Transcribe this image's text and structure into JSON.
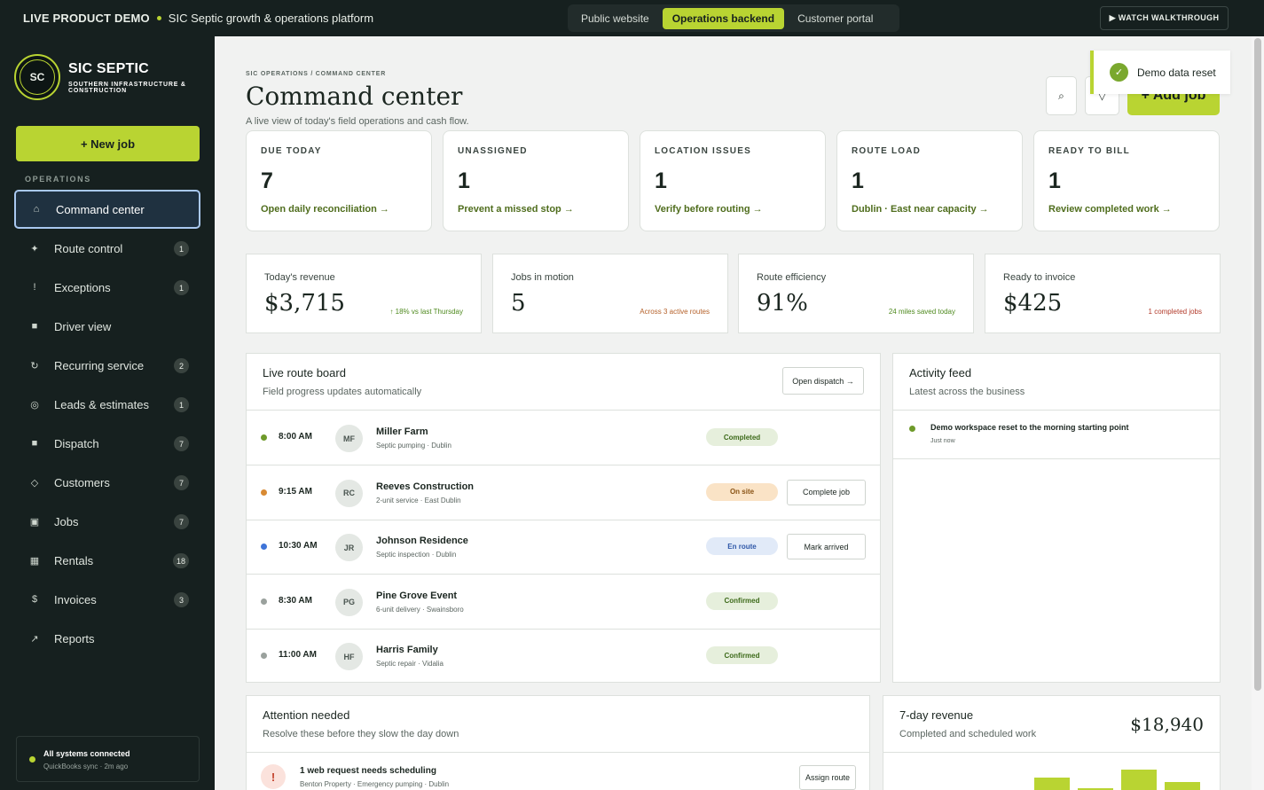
{
  "topbar": {
    "demo_label": "LIVE PRODUCT DEMO",
    "tagline": "SIC Septic growth & operations platform",
    "views": [
      "Public website",
      "Operations backend",
      "Customer portal"
    ],
    "active_view": "Operations backend",
    "walkthrough": "▶ WATCH WALKTHROUGH"
  },
  "sidebar": {
    "logo_mark": "SC",
    "brand_name": "SIC SEPTIC",
    "brand_sub": "SOUTHERN INFRASTRUCTURE & CONSTRUCTION",
    "new_job": "+ New job",
    "section": "OPERATIONS",
    "items": [
      {
        "label": "Command center",
        "icon": "⌂",
        "badge": "",
        "icon_name": "home-icon"
      },
      {
        "label": "Route control",
        "icon": "✦",
        "badge": "1",
        "icon_name": "route-icon"
      },
      {
        "label": "Exceptions",
        "icon": "!",
        "badge": "1",
        "icon_name": "alert-icon"
      },
      {
        "label": "Driver view",
        "icon": "■",
        "badge": "",
        "icon_name": "driver-icon"
      },
      {
        "label": "Recurring service",
        "icon": "↻",
        "badge": "2",
        "icon_name": "recurring-icon"
      },
      {
        "label": "Leads & estimates",
        "icon": "◎",
        "badge": "1",
        "icon_name": "leads-icon"
      },
      {
        "label": "Dispatch",
        "icon": "■",
        "badge": "7",
        "icon_name": "dispatch-icon"
      },
      {
        "label": "Customers",
        "icon": "◇",
        "badge": "7",
        "icon_name": "customers-icon"
      },
      {
        "label": "Jobs",
        "icon": "▣",
        "badge": "7",
        "icon_name": "jobs-icon"
      },
      {
        "label": "Rentals",
        "icon": "▦",
        "badge": "18",
        "icon_name": "rentals-icon"
      },
      {
        "label": "Invoices",
        "icon": "$",
        "badge": "3",
        "icon_name": "invoices-icon"
      },
      {
        "label": "Reports",
        "icon": "↗",
        "badge": "",
        "icon_name": "reports-icon"
      }
    ],
    "active_item": "Command center",
    "sync_title": "All systems connected",
    "sync_sub": "QuickBooks sync · 2m ago"
  },
  "header": {
    "breadcrumb": "SIC OPERATIONS / COMMAND CENTER",
    "title": "Command center",
    "subtitle": "A live view of today's field operations and cash flow.",
    "search_icon": "⌕",
    "filter_icon": "▽",
    "add_job": "+ Add job"
  },
  "toast": {
    "icon": "✓",
    "text": "Demo data reset"
  },
  "kpis": [
    {
      "label": "DUE TODAY",
      "value": "7",
      "link": "Open daily reconciliation →"
    },
    {
      "label": "UNASSIGNED",
      "value": "1",
      "link": "Prevent a missed stop →"
    },
    {
      "label": "LOCATION ISSUES",
      "value": "1",
      "link": "Verify before routing →"
    },
    {
      "label": "ROUTE LOAD",
      "value": "1",
      "link": "Dublin · East near capacity →"
    },
    {
      "label": "READY TO BILL",
      "value": "1",
      "link": "Review completed work →"
    }
  ],
  "stats": [
    {
      "label": "Today's revenue",
      "value": "$3,715",
      "note": "↑ 18% vs last Thursday",
      "note_color": "#4f8a1f"
    },
    {
      "label": "Jobs in motion",
      "value": "5",
      "note": "Across 3 active routes",
      "note_color": "#b5612a"
    },
    {
      "label": "Route efficiency",
      "value": "91%",
      "note": "24 miles saved today",
      "note_color": "#4f8a1f"
    },
    {
      "label": "Ready to invoice",
      "value": "$425",
      "note": "1 completed jobs",
      "note_color": "#b23a2a"
    }
  ],
  "route_board": {
    "title": "Live route board",
    "subtitle": "Field progress updates automatically",
    "open_dispatch": "Open dispatch →",
    "rows": [
      {
        "time": "8:00 AM",
        "initials": "MF",
        "name": "Miller Farm",
        "meta": "Septic pumping · Dublin",
        "status": "Completed",
        "dot": "#6e9a2a",
        "pill_bg": "#e6efdc",
        "pill_fg": "#3d6a1a",
        "action": ""
      },
      {
        "time": "9:15 AM",
        "initials": "RC",
        "name": "Reeves Construction",
        "meta": "2-unit service · East Dublin",
        "status": "On site",
        "dot": "#d88a33",
        "pill_bg": "#fae3c6",
        "pill_fg": "#8a5416",
        "action": "Complete job"
      },
      {
        "time": "10:30 AM",
        "initials": "JR",
        "name": "Johnson Residence",
        "meta": "Septic inspection · Dublin",
        "status": "En route",
        "dot": "#3f74d8",
        "pill_bg": "#e1eaf8",
        "pill_fg": "#2f58a8",
        "action": "Mark arrived"
      },
      {
        "time": "8:30 AM",
        "initials": "PG",
        "name": "Pine Grove Event",
        "meta": "6-unit delivery · Swainsboro",
        "status": "Confirmed",
        "dot": "#9aa19d",
        "pill_bg": "#e6efdc",
        "pill_fg": "#3d6a1a",
        "action": ""
      },
      {
        "time": "11:00 AM",
        "initials": "HF",
        "name": "Harris Family",
        "meta": "Septic repair · Vidalia",
        "status": "Confirmed",
        "dot": "#9aa19d",
        "pill_bg": "#e6efdc",
        "pill_fg": "#3d6a1a",
        "action": ""
      }
    ]
  },
  "activity": {
    "title": "Activity feed",
    "subtitle": "Latest across the business",
    "items": [
      {
        "text": "Demo workspace reset to the morning starting point",
        "time": "Just now"
      }
    ]
  },
  "attention": {
    "title": "Attention needed",
    "subtitle": "Resolve these before they slow the day down",
    "items": [
      {
        "icon": "!",
        "title": "1 web request needs scheduling",
        "meta": "Benton Property · Emergency pumping · Dublin",
        "action": "Assign route"
      }
    ]
  },
  "revenue7": {
    "title": "7-day revenue",
    "subtitle": "Completed and scheduled work",
    "total": "$18,940"
  },
  "chart_data": {
    "type": "bar",
    "values": [
      0.62,
      0.1,
      1.0,
      0.42
    ],
    "note": "partially visible bars, relative heights only"
  }
}
